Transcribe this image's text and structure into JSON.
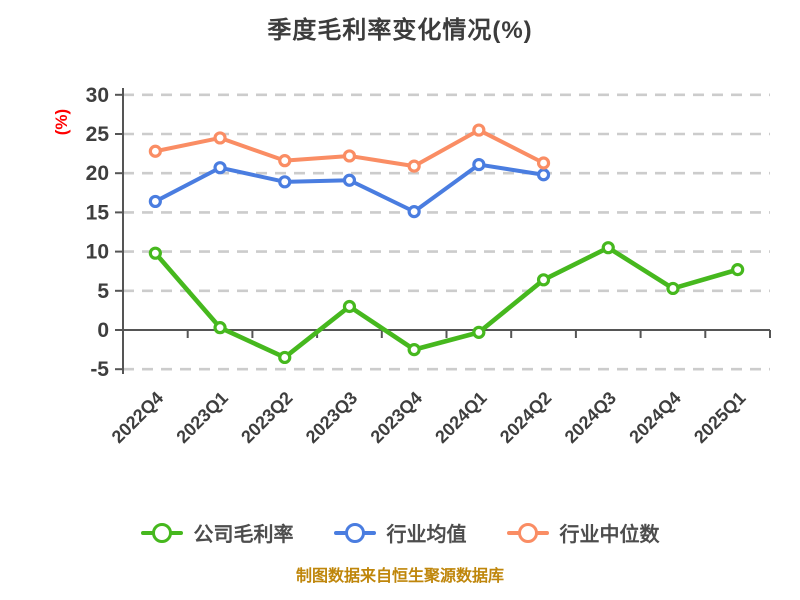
{
  "title": "季度毛利率变化情况(%)",
  "y_axis_name": "(%)",
  "footer": "制图数据来自恒生聚源数据库",
  "colors": {
    "company_line": "#46b81e",
    "industry_mean_line": "#4a7de0",
    "industry_median_line": "#fa8d64",
    "y_axis_name_text": "#ff0000",
    "footer_text": "#bf860b",
    "grid_line": "#cccccc",
    "axis_line": "#555555",
    "tick_text": "#3e3e3e",
    "legend_text": "#4d4d4d",
    "title_text": "#3c3c3c"
  },
  "chart_data": {
    "type": "line",
    "title": "季度毛利率变化情况(%)",
    "xlabel": "",
    "ylabel": "(%)",
    "ylim": [
      -5,
      30
    ],
    "y_ticks": [
      30,
      25,
      20,
      15,
      10,
      5,
      0,
      -5
    ],
    "grid": "horizontal dashed gridlines on",
    "legend_position": "bottom",
    "categories": [
      "2022Q4",
      "2023Q1",
      "2023Q2",
      "2023Q3",
      "2023Q4",
      "2024Q1",
      "2024Q2",
      "2024Q3",
      "2024Q4",
      "2025Q1"
    ],
    "series": [
      {
        "name": "公司毛利率",
        "color": "#46b81e",
        "marker": "circle-white-fill",
        "values": [
          9.8,
          0.3,
          -3.5,
          3.0,
          -2.5,
          -0.3,
          6.4,
          10.5,
          5.3,
          7.7
        ]
      },
      {
        "name": "行业均值",
        "color": "#4a7de0",
        "marker": "circle-white-fill",
        "values": [
          16.4,
          20.7,
          18.9,
          19.1,
          15.1,
          21.1,
          19.8,
          null,
          null,
          null
        ]
      },
      {
        "name": "行业中位数",
        "color": "#fa8d64",
        "marker": "circle-white-fill",
        "values": [
          22.8,
          24.5,
          21.6,
          22.2,
          20.9,
          25.5,
          21.3,
          null,
          null,
          null
        ]
      }
    ]
  }
}
